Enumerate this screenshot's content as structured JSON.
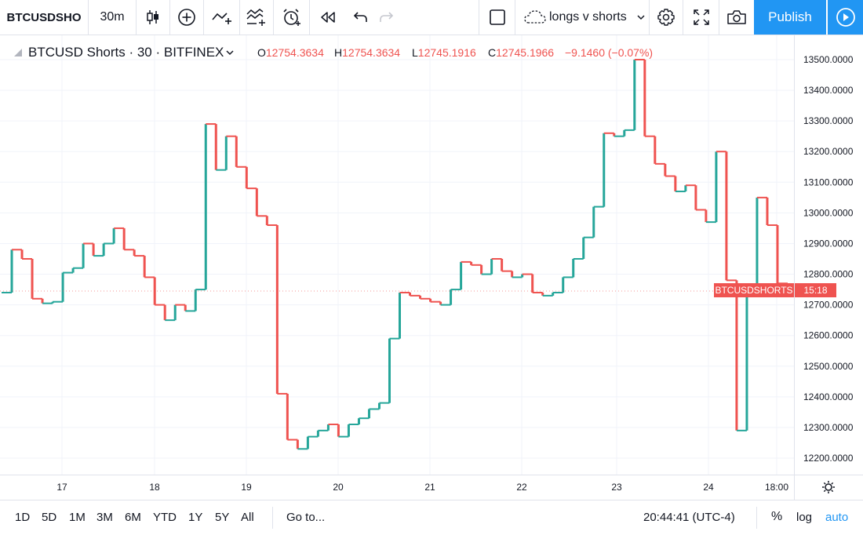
{
  "toolbar": {
    "symbol": "BTCUSDSHO",
    "interval": "30m",
    "layout_name": "longs v shorts",
    "publish_label": "Publish"
  },
  "legend": {
    "title": "BTCUSD Shorts · 30 · BITFINEX",
    "open_label": "O",
    "open": "12754.3634",
    "high_label": "H",
    "high": "12754.3634",
    "low_label": "L",
    "low": "12745.1916",
    "close_label": "C",
    "close": "12745.1966",
    "change": "−9.1460 (−0.07%)"
  },
  "price_badge": {
    "label": "BTCUSDSHORTS",
    "time": "15:18"
  },
  "bottom": {
    "ranges": [
      "1D",
      "5D",
      "1M",
      "3M",
      "6M",
      "YTD",
      "1Y",
      "5Y",
      "All"
    ],
    "goto": "Go to...",
    "clock": "20:44:41 (UTC-4)",
    "percent": "%",
    "log": "log",
    "auto": "auto"
  },
  "colors": {
    "up": "#26a69a",
    "down": "#ef5350",
    "accent": "#2196f3",
    "grid": "#f0f3fa"
  },
  "icons": [
    "candles-icon",
    "add-indicator-icon",
    "compare-icon",
    "indicators-icon",
    "alert-icon",
    "replay-icon",
    "undo-icon",
    "redo-icon",
    "fullscreen-icon",
    "cloud-icon",
    "settings-icon",
    "snapshot-icon",
    "play-icon"
  ],
  "chart_data": {
    "type": "line",
    "y_tick_labels": [
      "13500.0000",
      "13400.0000",
      "13300.0000",
      "13200.0000",
      "13100.0000",
      "13000.0000",
      "12900.0000",
      "12800.0000",
      "12700.0000",
      "12600.0000",
      "12500.0000",
      "12400.0000",
      "12300.0000",
      "12200.0000"
    ],
    "ylim": [
      12170,
      13530
    ],
    "x_tick_labels": [
      "17",
      "18",
      "19",
      "20",
      "21",
      "22",
      "23",
      "24",
      "18:00"
    ],
    "close_series": [
      12740,
      12880,
      12850,
      12720,
      12705,
      12710,
      12805,
      12820,
      12900,
      12860,
      12900,
      12950,
      12880,
      12860,
      12790,
      12700,
      12650,
      12700,
      12680,
      12750,
      13290,
      13140,
      13250,
      13150,
      13080,
      12990,
      12960,
      12410,
      12260,
      12230,
      12270,
      12290,
      12310,
      12270,
      12310,
      12330,
      12360,
      12380,
      12590,
      12740,
      12730,
      12720,
      12710,
      12700,
      12750,
      12840,
      12830,
      12800,
      12850,
      12810,
      12790,
      12800,
      12740,
      12730,
      12740,
      12790,
      12850,
      12920,
      13020,
      13260,
      13250,
      13270,
      13500,
      13250,
      13160,
      13120,
      13070,
      13090,
      13010,
      12970,
      13200,
      12780,
      12290,
      12740,
      13050,
      12960,
      12770,
      12745
    ],
    "last_price": 12745.1966,
    "grid": true
  }
}
